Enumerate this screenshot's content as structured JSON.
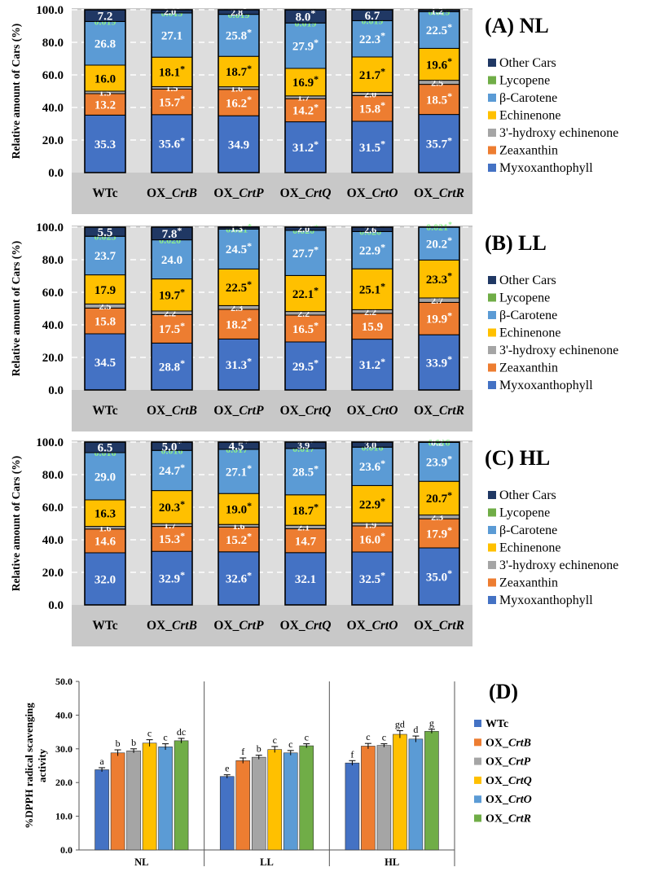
{
  "colors": {
    "Myxoxanthophyll": "#4472C4",
    "Zeaxanthin": "#ED7D31",
    "3'-hydroxy echinenone": "#A5A5A5",
    "Echinenone": "#FFC000",
    "β-Carotene": "#5B9BD5",
    "Lycopene": "#70AD47",
    "Other Cars": "#203864",
    "panel_bg": "#C8C8C8",
    "plot_bg": "#DDDDDD",
    "lycopene_label": "#8CF08C"
  },
  "chart_data": [
    {
      "type": "bar",
      "stacked": true,
      "panel": "(A) NL",
      "ylabel": "Relative amount of Cars (%)",
      "ylim": [
        0,
        100
      ],
      "yticks": [
        "0.0",
        "20.0",
        "40.0",
        "60.0",
        "80.0",
        "100.0"
      ],
      "categories": [
        "WTc",
        "OX_CrtB",
        "OX_CrtP",
        "OX_CrtQ",
        "OX_CrtO",
        "OX_CrtR"
      ],
      "legend": [
        "Other Cars",
        "Lycopene",
        "β-Carotene",
        "Echinenone",
        "3'-hydroxy echinenone",
        "Zeaxanthin",
        "Myxoxanthophyll"
      ],
      "series": [
        {
          "name": "Myxoxanthophyll",
          "values": [
            35.3,
            35.6,
            34.9,
            31.2,
            31.5,
            35.7
          ],
          "labels": [
            "35.3",
            "35.6*",
            "34.9",
            "31.2*",
            "31.5*",
            "35.7*"
          ]
        },
        {
          "name": "Zeaxanthin",
          "values": [
            13.2,
            15.7,
            16.2,
            14.2,
            15.8,
            18.5
          ],
          "labels": [
            "13.2",
            "15.7*",
            "16.2*",
            "14.2*",
            "15.8*",
            "18.5*"
          ]
        },
        {
          "name": "3'-hydroxy echinenone",
          "values": [
            1.5,
            1.5,
            1.6,
            1.7,
            2.0,
            2.5
          ],
          "labels": [
            "1.5",
            "1.5",
            "1.6*",
            "1.7*",
            "2.0*",
            "2.5*"
          ]
        },
        {
          "name": "Echinenone",
          "values": [
            16.0,
            18.1,
            18.7,
            16.9,
            21.7,
            19.6
          ],
          "labels": [
            "16.0",
            "18.1*",
            "18.7*",
            "16.9*",
            "21.7*",
            "19.6*"
          ]
        },
        {
          "name": "β-Carotene",
          "values": [
            26.8,
            27.1,
            25.8,
            27.9,
            22.3,
            22.5
          ],
          "labels": [
            "26.8",
            "27.1",
            "25.8*",
            "27.9*",
            "22.3*",
            "22.5*"
          ]
        },
        {
          "name": "Lycopene",
          "values": [
            0.019,
            0.019,
            0.019,
            0.019,
            0.019,
            0.019
          ],
          "labels": [
            "0.019",
            "0.019",
            "0.019",
            "0.019",
            "0.019",
            "0.019"
          ]
        },
        {
          "name": "Other Cars",
          "values": [
            7.2,
            2.0,
            2.8,
            8.0,
            6.7,
            1.2
          ],
          "labels": [
            "7.2",
            "2.0*",
            "2.8*",
            "8.0*",
            "6.7",
            "1.2*"
          ]
        }
      ]
    },
    {
      "type": "bar",
      "stacked": true,
      "panel": "(B) LL",
      "ylabel": "Relative amount of Cars (%)",
      "ylim": [
        0,
        100
      ],
      "yticks": [
        "0.0",
        "20.0",
        "40.0",
        "60.0",
        "80.0",
        "100.0"
      ],
      "categories": [
        "WTc",
        "OX_CrtB",
        "OX_CrtP",
        "OX_CrtQ",
        "OX_CrtO",
        "OX_CrtR"
      ],
      "legend": [
        "Other Cars",
        "Lycopene",
        "β-Carotene",
        "Echinenone",
        "3'-hydroxy echinenone",
        "Zeaxanthin",
        "Myxoxanthophyll"
      ],
      "series": [
        {
          "name": "Myxoxanthophyll",
          "values": [
            34.5,
            28.8,
            31.3,
            29.5,
            31.2,
            33.9
          ],
          "labels": [
            "34.5",
            "28.8*",
            "31.3*",
            "29.5*",
            "31.2*",
            "33.9*"
          ]
        },
        {
          "name": "Zeaxanthin",
          "values": [
            15.8,
            17.5,
            18.2,
            16.5,
            15.9,
            19.9
          ],
          "labels": [
            "15.8",
            "17.5*",
            "18.2*",
            "16.5*",
            "15.9",
            "19.9*"
          ]
        },
        {
          "name": "3'-hydroxy echinenone",
          "values": [
            2.5,
            2.2,
            2.3,
            2.2,
            2.2,
            2.7
          ],
          "labels": [
            "2.5",
            "2.2*",
            "2.3*",
            "2.2*",
            "2.2*",
            "2.7*"
          ]
        },
        {
          "name": "Echinenone",
          "values": [
            17.9,
            19.7,
            22.5,
            22.1,
            25.1,
            23.3
          ],
          "labels": [
            "17.9",
            "19.7*",
            "22.5*",
            "22.1*",
            "25.1*",
            "23.3*"
          ]
        },
        {
          "name": "β-Carotene",
          "values": [
            23.7,
            24.0,
            24.5,
            27.7,
            22.9,
            20.2
          ],
          "labels": [
            "23.7",
            "24.0",
            "24.5*",
            "27.7*",
            "22.9*",
            "20.2*"
          ]
        },
        {
          "name": "Lycopene",
          "values": [
            0.025,
            0.02,
            0.021,
            0.02,
            0.02,
            0.021
          ],
          "labels": [
            "0.025",
            "0.020 *",
            "0.021*",
            "0.020*",
            "0.020*",
            "0.021*"
          ]
        },
        {
          "name": "Other Cars",
          "values": [
            5.5,
            7.8,
            1.3,
            2.0,
            2.6,
            0
          ],
          "labels": [
            "5.5",
            "7.8*",
            "1.3*",
            "2.0*",
            "2.6*",
            ""
          ]
        }
      ]
    },
    {
      "type": "bar",
      "stacked": true,
      "panel": "(C) HL",
      "ylabel": "Relative amount of Cars (%)",
      "ylim": [
        0,
        100
      ],
      "yticks": [
        "0.0",
        "20.0",
        "40.0",
        "60.0",
        "80.0",
        "100.0"
      ],
      "categories": [
        "WTc",
        "OX_CrtB",
        "OX_CrtP",
        "OX_CrtQ",
        "OX_CrtO",
        "OX_CrtR"
      ],
      "legend": [
        "Other Cars",
        "Lycopene",
        "β-Carotene",
        "Echinenone",
        "3'-hydroxy echinenone",
        "Zeaxanthin",
        "Myxoxanthophyll"
      ],
      "series": [
        {
          "name": "Myxoxanthophyll",
          "values": [
            32.0,
            32.9,
            32.6,
            32.1,
            32.5,
            35.0
          ],
          "labels": [
            "32.0",
            "32.9*",
            "32.6*",
            "32.1",
            "32.5*",
            "35.0*"
          ]
        },
        {
          "name": "Zeaxanthin",
          "values": [
            14.6,
            15.3,
            15.2,
            14.7,
            16.0,
            17.9
          ],
          "labels": [
            "14.6",
            "15.3*",
            "15.2*",
            "14.7",
            "16.0*",
            "17.9*"
          ]
        },
        {
          "name": "3'-hydroxy echinenone",
          "values": [
            1.6,
            1.7,
            1.6,
            2.1,
            1.9,
            2.3
          ],
          "labels": [
            "1.6",
            "1.7*",
            "1.6",
            "2.1*",
            "1.9*",
            "2.3*"
          ]
        },
        {
          "name": "Echinenone",
          "values": [
            16.3,
            20.3,
            19.0,
            18.7,
            22.9,
            20.7
          ],
          "labels": [
            "16.3",
            "20.3*",
            "19.0*",
            "18.7*",
            "22.9*",
            "20.7*"
          ]
        },
        {
          "name": "β-Carotene",
          "values": [
            29.0,
            24.7,
            27.1,
            28.5,
            23.6,
            23.9
          ],
          "labels": [
            "29.0",
            "24.7*",
            "27.1*",
            "28.5*",
            "23.6*",
            "23.9*"
          ]
        },
        {
          "name": "Lycopene",
          "values": [
            0.016,
            0.016,
            0.017,
            0.017,
            0.016,
            0.016
          ],
          "labels": [
            "0.016",
            "0.016",
            "0.017*",
            "0.017*",
            "0.016",
            "0.016"
          ]
        },
        {
          "name": "Other Cars",
          "values": [
            6.5,
            5.0,
            4.5,
            3.9,
            3.0,
            0.2
          ],
          "labels": [
            "6.5",
            "5.0*",
            "4.5*",
            "3.9*",
            "3.0*",
            "0.2*"
          ]
        }
      ]
    },
    {
      "type": "bar",
      "panel": "(D)",
      "ylabel": "%DPPH radical scavenging activity",
      "ylim": [
        0,
        50
      ],
      "yticks": [
        "0.0",
        "10.0",
        "20.0",
        "30.0",
        "40.0",
        "50.0"
      ],
      "categories": [
        "NL",
        "LL",
        "HL"
      ],
      "series": [
        {
          "name": "WTc",
          "values": [
            23.8,
            21.8,
            25.8
          ],
          "errors": [
            0.6,
            0.5,
            0.7
          ],
          "letters": [
            "a",
            "e",
            "f"
          ]
        },
        {
          "name": "OX_CrtB",
          "values": [
            28.8,
            26.5,
            30.8
          ],
          "errors": [
            0.9,
            0.8,
            0.8
          ],
          "letters": [
            "b",
            "f",
            "c"
          ]
        },
        {
          "name": "OX_CrtP",
          "values": [
            29.4,
            27.5,
            31.0
          ],
          "errors": [
            0.6,
            0.6,
            0.5
          ],
          "letters": [
            "b",
            "b",
            "c"
          ]
        },
        {
          "name": "OX_CrtQ",
          "values": [
            31.7,
            29.8,
            34.3
          ],
          "errors": [
            1.0,
            0.9,
            1.1
          ],
          "letters": [
            "c",
            "c",
            "gd"
          ]
        },
        {
          "name": "OX_CrtO",
          "values": [
            30.6,
            28.8,
            32.9
          ],
          "errors": [
            0.9,
            0.7,
            0.9
          ],
          "letters": [
            "c",
            "c",
            "d"
          ]
        },
        {
          "name": "OX_CrtR",
          "values": [
            32.4,
            30.9,
            35.2
          ],
          "errors": [
            0.7,
            0.6,
            0.6
          ],
          "letters": [
            "dc",
            "c",
            "g"
          ]
        }
      ],
      "legend": [
        "WTc",
        "OX_CrtB",
        "OX_CrtP",
        "OX_CrtQ",
        "OX_CrtO",
        "OX_CrtR"
      ],
      "legend_colors": [
        "#4472C4",
        "#ED7D31",
        "#A5A5A5",
        "#FFC000",
        "#5B9BD5",
        "#70AD47"
      ]
    }
  ]
}
